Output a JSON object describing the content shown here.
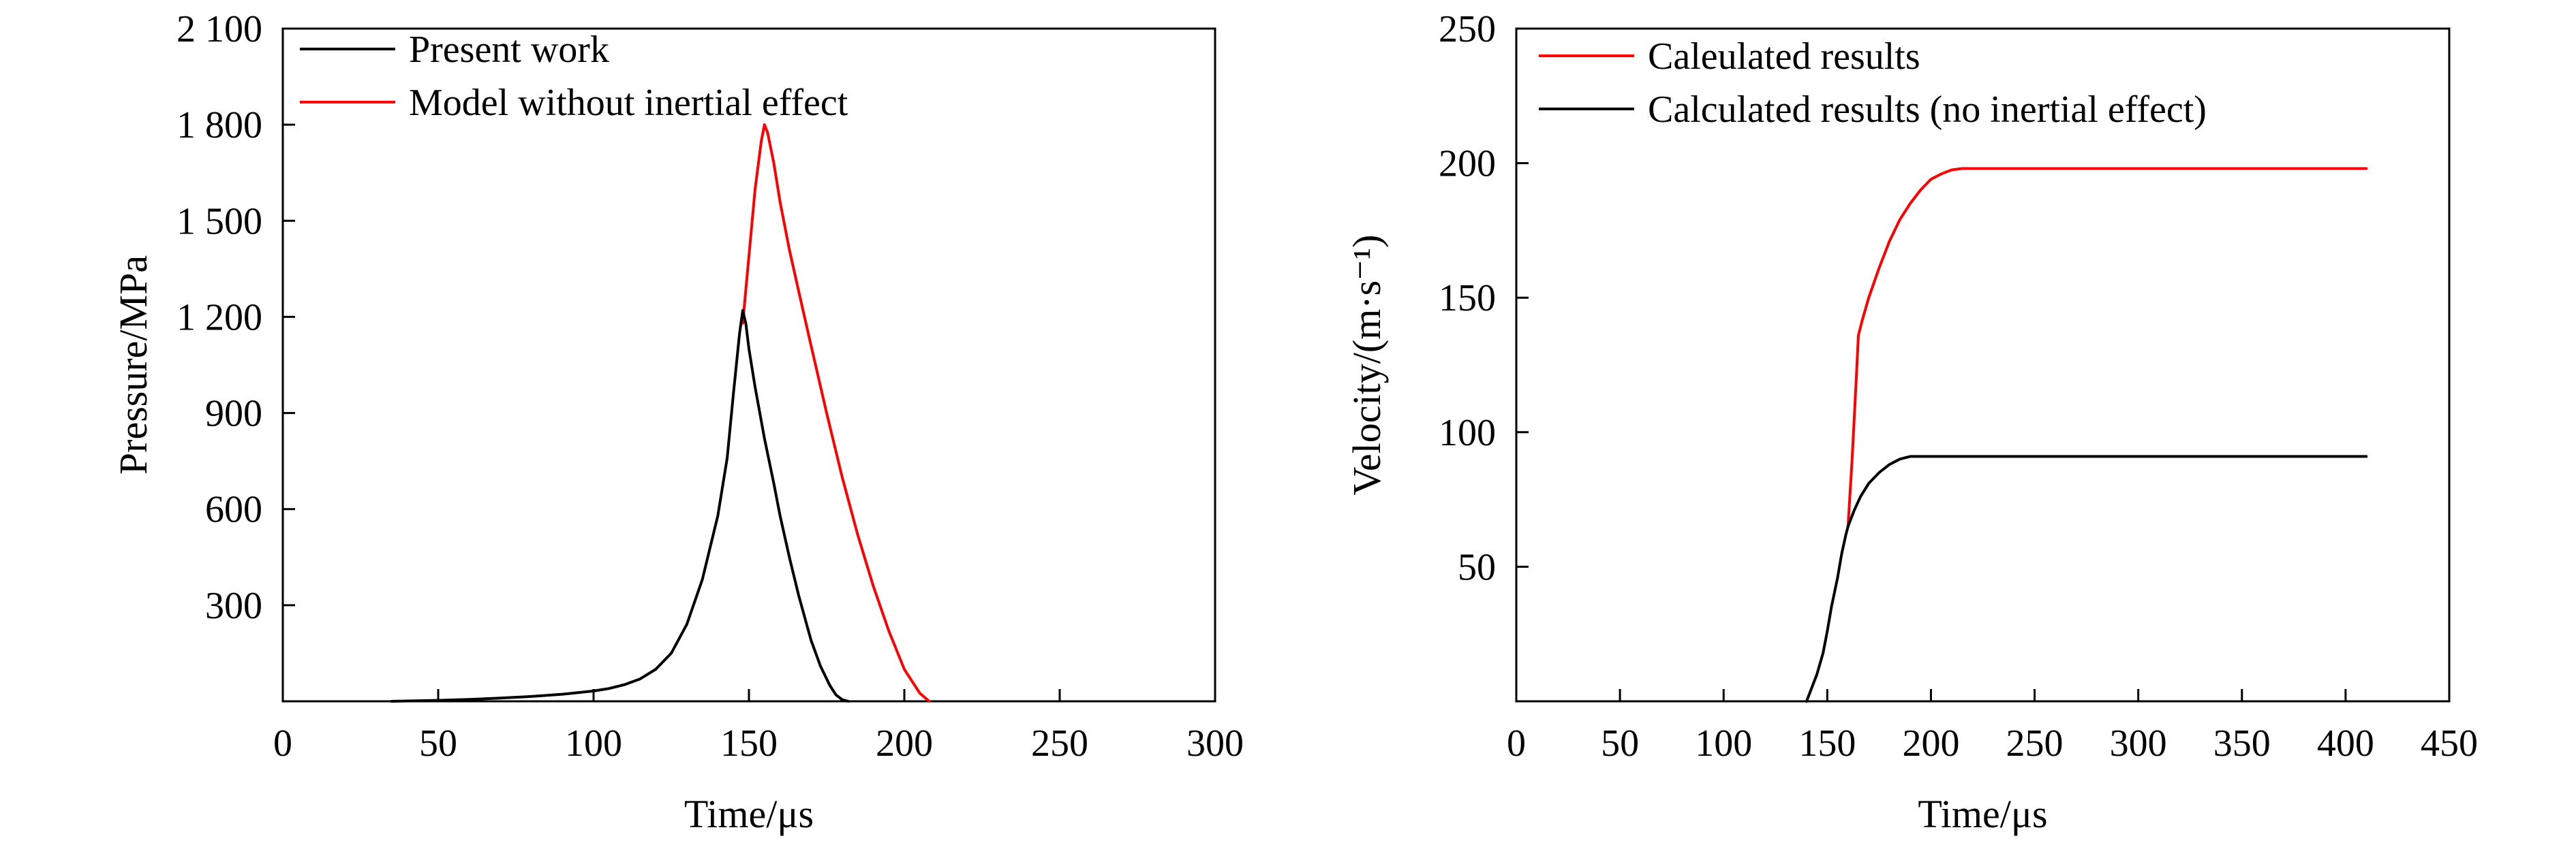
{
  "chart_data": [
    {
      "type": "line",
      "xlabel": "Time/μs",
      "ylabel": "Pressure/MPa",
      "xlim": [
        0,
        300
      ],
      "ylim": [
        0,
        2100
      ],
      "x_ticks": [
        0,
        50,
        100,
        150,
        200,
        250,
        300
      ],
      "x_tick_labels": [
        "0",
        "50",
        "100",
        "150",
        "200",
        "250",
        "300"
      ],
      "y_ticks": [
        300,
        600,
        900,
        1200,
        1500,
        1800,
        2100
      ],
      "y_tick_labels": [
        "300",
        "600",
        "900",
        "1 200",
        "1 500",
        "1 800",
        "2 100"
      ],
      "legend_position": "top-left",
      "series": [
        {
          "name": "Model without inertial effect",
          "color": "#ff0000",
          "x": [
            148,
            150,
            152,
            154,
            155,
            156,
            158,
            160,
            163,
            166,
            170,
            175,
            180,
            185,
            190,
            195,
            200,
            205,
            208
          ],
          "y": [
            1180,
            1390,
            1600,
            1750,
            1800,
            1775,
            1680,
            1560,
            1410,
            1280,
            1110,
            900,
            700,
            520,
            360,
            220,
            100,
            25,
            0
          ]
        },
        {
          "name": "Present work",
          "color": "#000000",
          "x": [
            35,
            50,
            60,
            70,
            80,
            90,
            100,
            105,
            110,
            115,
            120,
            125,
            130,
            135,
            140,
            143,
            145,
            147,
            148,
            149,
            150,
            152,
            155,
            158,
            160,
            163,
            166,
            170,
            173,
            176,
            178,
            180,
            182
          ],
          "y": [
            0,
            3,
            6,
            10,
            15,
            22,
            32,
            40,
            52,
            70,
            100,
            150,
            240,
            380,
            580,
            760,
            960,
            1150,
            1220,
            1180,
            1100,
            980,
            820,
            680,
            580,
            450,
            330,
            190,
            110,
            50,
            20,
            5,
            0
          ]
        }
      ]
    },
    {
      "type": "line",
      "xlabel": "Time/μs",
      "ylabel": "Velocity/(m·s⁻¹)",
      "xlim": [
        0,
        450
      ],
      "ylim": [
        0,
        250
      ],
      "x_ticks": [
        0,
        50,
        100,
        150,
        200,
        250,
        300,
        350,
        400,
        450
      ],
      "x_tick_labels": [
        "0",
        "50",
        "100",
        "150",
        "200",
        "250",
        "300",
        "350",
        "400",
        "450"
      ],
      "y_ticks": [
        50,
        100,
        150,
        200,
        250
      ],
      "y_tick_labels": [
        "50",
        "100",
        "150",
        "200",
        "250"
      ],
      "legend_position": "top-left",
      "series": [
        {
          "name": "Caleulated results",
          "color": "#ff0000",
          "x": [
            160,
            162,
            164,
            165,
            167,
            170,
            175,
            180,
            185,
            190,
            195,
            200,
            205,
            210,
            215,
            220,
            230,
            250,
            300,
            350,
            410
          ],
          "y": [
            65,
            90,
            120,
            136,
            142,
            150,
            161,
            171,
            179,
            185,
            190,
            194,
            196,
            197.5,
            198,
            198,
            198,
            198,
            198,
            198,
            198
          ]
        },
        {
          "name": "Calculated results (no inertial effect)",
          "color": "#000000",
          "x": [
            140,
            142,
            145,
            148,
            150,
            152,
            155,
            157,
            159,
            160,
            163,
            166,
            170,
            175,
            180,
            185,
            190,
            200,
            220,
            250,
            300,
            350,
            410
          ],
          "y": [
            0,
            4,
            10,
            18,
            26,
            35,
            46,
            55,
            62,
            65,
            71,
            76,
            81,
            85,
            88,
            90,
            91,
            91,
            91,
            91,
            91,
            91,
            91
          ]
        }
      ]
    }
  ]
}
